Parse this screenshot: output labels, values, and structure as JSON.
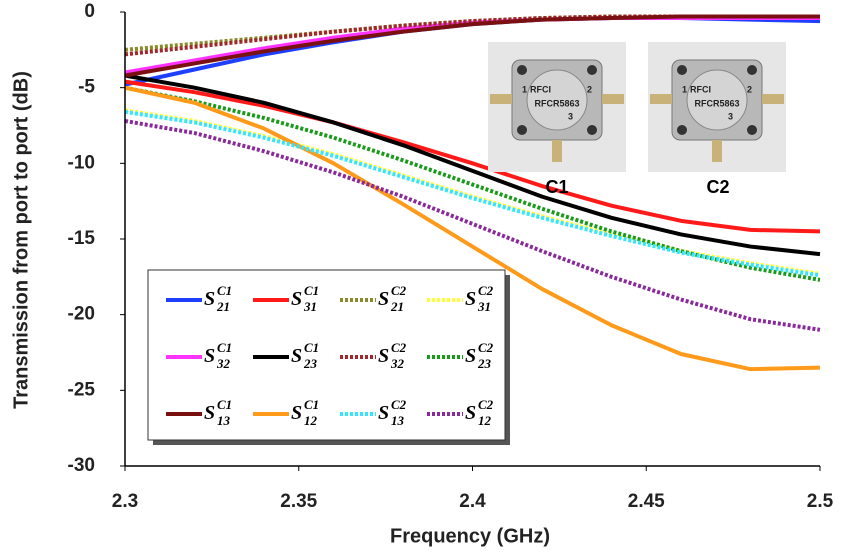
{
  "chart_data": {
    "type": "line",
    "x_label": "Frequency (GHz)",
    "y_label": "Transmission from port to port (dB)",
    "xlim": [
      2.3,
      2.5
    ],
    "xticks": [
      2.3,
      2.35,
      2.4,
      2.45,
      2.5
    ],
    "ylim": [
      -30,
      0
    ],
    "yticks": [
      0,
      -5,
      -10,
      -15,
      -20,
      -25,
      -30
    ],
    "grid": false,
    "legend": "lower left",
    "x": [
      2.3,
      2.32,
      2.34,
      2.36,
      2.38,
      2.4,
      2.42,
      2.44,
      2.46,
      2.48,
      2.5
    ],
    "series": [
      {
        "name": "S",
        "subscript": "21",
        "superscript": "C1",
        "color": "#1f3fff",
        "style": "solid",
        "values": [
          -4.8,
          -3.8,
          -2.8,
          -2.0,
          -1.3,
          -0.8,
          -0.5,
          -0.4,
          -0.4,
          -0.5,
          -0.6
        ]
      },
      {
        "name": "S",
        "subscript": "31",
        "superscript": "C1",
        "color": "#ff1a1a",
        "style": "solid",
        "values": [
          -4.6,
          -5.3,
          -6.2,
          -7.3,
          -8.6,
          -10.0,
          -11.5,
          -12.8,
          -13.8,
          -14.4,
          -14.5
        ]
      },
      {
        "name": "S",
        "subscript": "21",
        "superscript": "C2",
        "color": "#8a8a2a",
        "style": "dotted",
        "values": [
          -2.5,
          -2.1,
          -1.7,
          -1.3,
          -0.9,
          -0.6,
          -0.4,
          -0.3,
          -0.3,
          -0.3,
          -0.3
        ]
      },
      {
        "name": "S",
        "subscript": "31",
        "superscript": "C2",
        "color": "#ffff33",
        "style": "dotted",
        "values": [
          -6.5,
          -7.2,
          -8.2,
          -9.4,
          -10.8,
          -12.2,
          -13.5,
          -14.7,
          -15.8,
          -16.6,
          -17.3
        ]
      },
      {
        "name": "S",
        "subscript": "32",
        "superscript": "C1",
        "color": "#ff33ff",
        "style": "solid",
        "values": [
          -4.0,
          -3.2,
          -2.4,
          -1.7,
          -1.1,
          -0.7,
          -0.5,
          -0.4,
          -0.4,
          -0.4,
          -0.4
        ]
      },
      {
        "name": "S",
        "subscript": "23",
        "superscript": "C1",
        "color": "#000000",
        "style": "solid",
        "values": [
          -4.2,
          -5.0,
          -6.0,
          -7.3,
          -8.8,
          -10.5,
          -12.2,
          -13.6,
          -14.7,
          -15.5,
          -16.0
        ]
      },
      {
        "name": "S",
        "subscript": "32",
        "superscript": "C2",
        "color": "#a0282a",
        "style": "dotted",
        "values": [
          -2.8,
          -2.3,
          -1.8,
          -1.3,
          -0.9,
          -0.6,
          -0.4,
          -0.3,
          -0.3,
          -0.3,
          -0.3
        ]
      },
      {
        "name": "S",
        "subscript": "23",
        "superscript": "C2",
        "color": "#1a9a1a",
        "style": "dotted",
        "values": [
          -5.0,
          -5.9,
          -7.0,
          -8.3,
          -9.8,
          -11.4,
          -13.0,
          -14.5,
          -15.8,
          -16.9,
          -17.7
        ]
      },
      {
        "name": "S",
        "subscript": "13",
        "superscript": "C1",
        "color": "#7a1010",
        "style": "solid",
        "values": [
          -4.2,
          -3.4,
          -2.6,
          -1.9,
          -1.3,
          -0.8,
          -0.5,
          -0.4,
          -0.3,
          -0.3,
          -0.3
        ]
      },
      {
        "name": "S",
        "subscript": "12",
        "superscript": "C1",
        "color": "#ff9a1a",
        "style": "solid",
        "values": [
          -5.0,
          -6.0,
          -7.7,
          -10.0,
          -12.7,
          -15.5,
          -18.3,
          -20.7,
          -22.6,
          -23.6,
          -23.5
        ]
      },
      {
        "name": "S",
        "subscript": "13",
        "superscript": "C2",
        "color": "#33e6ff",
        "style": "dotted",
        "values": [
          -6.6,
          -7.3,
          -8.3,
          -9.5,
          -10.9,
          -12.3,
          -13.6,
          -14.8,
          -15.9,
          -16.7,
          -17.4
        ]
      },
      {
        "name": "S",
        "subscript": "12",
        "superscript": "C2",
        "color": "#8a2a9a",
        "style": "dotted",
        "values": [
          -7.2,
          -8.0,
          -9.2,
          -10.6,
          -12.2,
          -14.0,
          -15.8,
          -17.5,
          -19.0,
          -20.3,
          -21.0
        ]
      }
    ],
    "annotations": [
      {
        "label": "C1",
        "brand": "RFCI",
        "part": "RFCR5863",
        "port1": "1",
        "port2": "2",
        "port3": "3"
      },
      {
        "label": "C2",
        "brand": "RFCI",
        "part": "RFCR5863",
        "port1": "1",
        "port2": "2",
        "port3": "3"
      }
    ]
  }
}
